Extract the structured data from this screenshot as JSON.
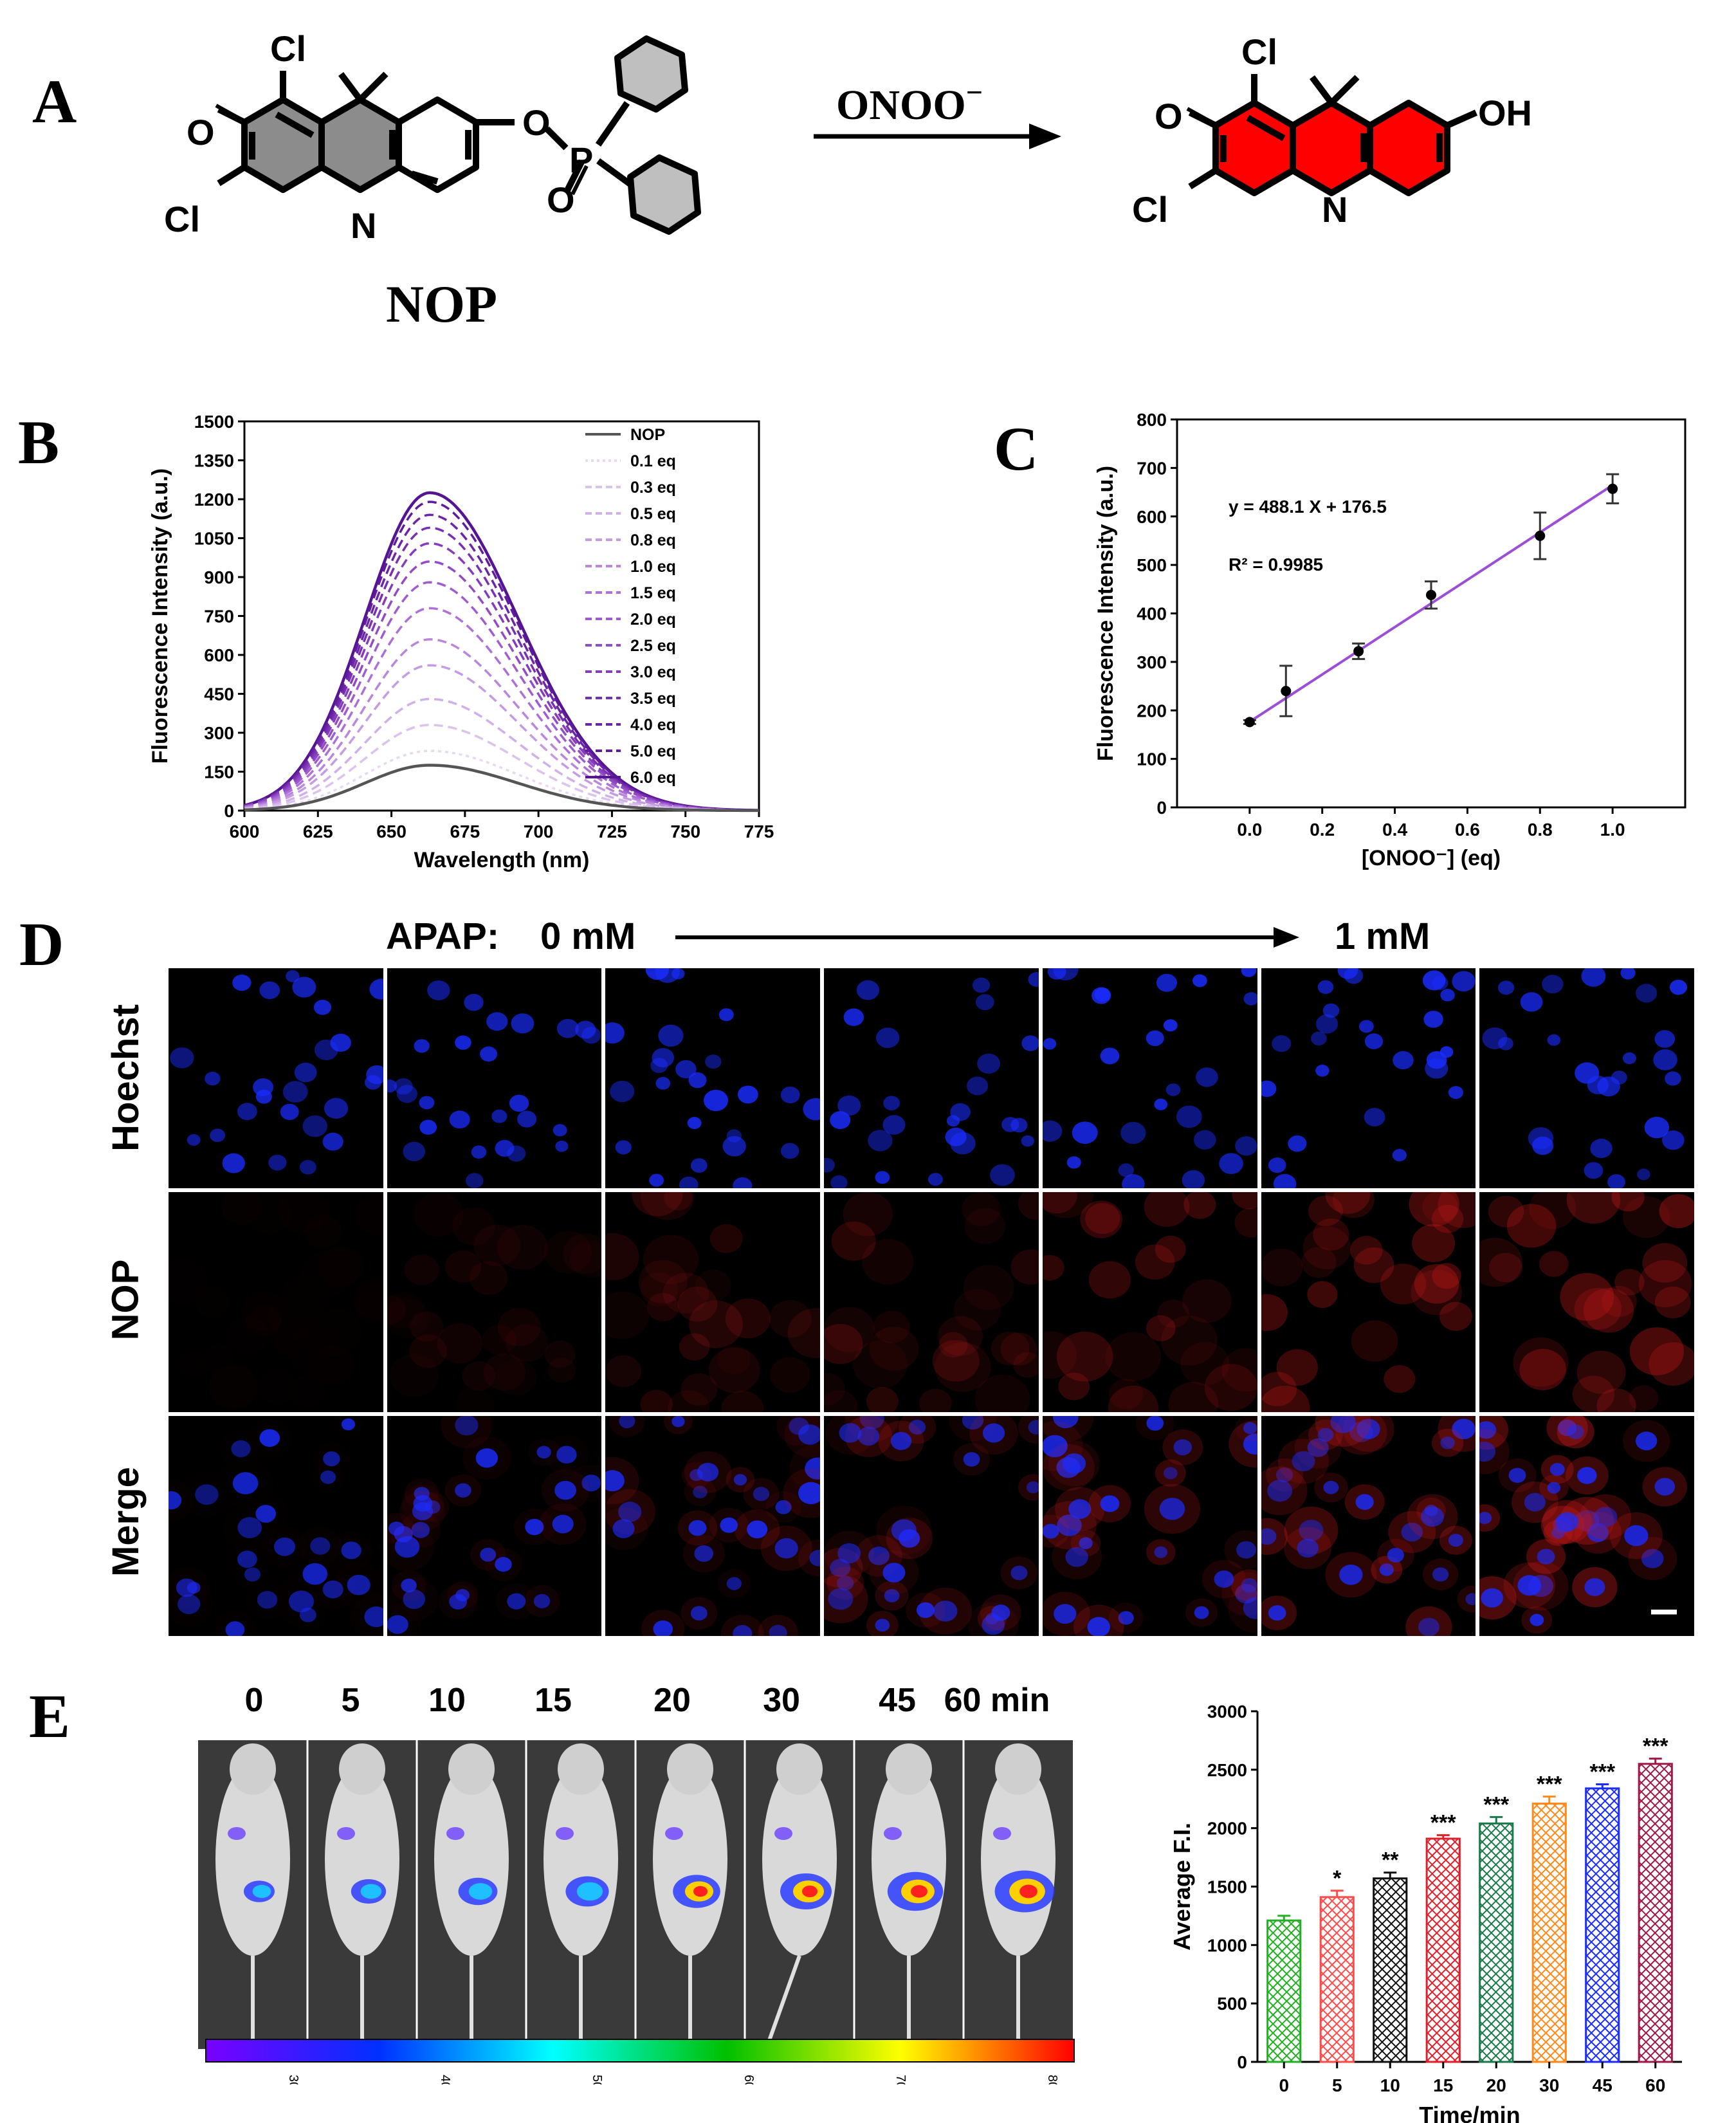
{
  "panels": {
    "A": "A",
    "B": "B",
    "C": "C",
    "D": "D",
    "E": "E"
  },
  "scheme": {
    "probe_name": "NOP",
    "reagent": "ONOO",
    "reagent_charge": "−",
    "atom_cl": "Cl",
    "atom_o": "O",
    "atom_n": "N",
    "atom_p": "P",
    "group_oh": "OH",
    "colors": {
      "probe_fill": "#8c8c8c",
      "product_fill": "#ff0000"
    }
  },
  "panel_d": {
    "apap_label": "APAP:",
    "conc_start": "0 mM",
    "conc_end": "1 mM",
    "rows": [
      "Hoechst",
      "NOP",
      "Merge"
    ],
    "colors": {
      "hoechst": "#1a2cff",
      "nop": "#c01818"
    },
    "nop_intensity": [
      0.05,
      0.2,
      0.38,
      0.45,
      0.55,
      0.72,
      0.85
    ]
  },
  "panel_e_images": {
    "time_labels": [
      "0",
      "5",
      "10",
      "15",
      "20",
      "30",
      "45",
      "60 min"
    ],
    "colorbar_ticks": [
      "3000",
      "4000",
      "5000",
      "6000",
      "7000",
      "8000"
    ]
  },
  "chart_data": [
    {
      "id": "B",
      "type": "line",
      "xlabel": "Wavelength (nm)",
      "ylabel": "Fluorescence Intensity (a.u.)",
      "xlim": [
        600,
        775
      ],
      "ylim": [
        0,
        1500
      ],
      "xticks": [
        "600",
        "625",
        "650",
        "675",
        "700",
        "725",
        "750",
        "775"
      ],
      "yticks": [
        "0",
        "150",
        "300",
        "450",
        "600",
        "750",
        "900",
        "1050",
        "1200",
        "1350",
        "1500"
      ],
      "peak_wavelength": 663,
      "series": [
        {
          "name": "NOP",
          "peak": 175,
          "color": "#555555",
          "style": "solid"
        },
        {
          "name": "0.1 eq",
          "peak": 230,
          "color": "#e8d8f0",
          "style": "dotted"
        },
        {
          "name": "0.3 eq",
          "peak": 330,
          "color": "#dcc2ec",
          "style": "dashed"
        },
        {
          "name": "0.5 eq",
          "peak": 430,
          "color": "#d0b0e8",
          "style": "dashed"
        },
        {
          "name": "0.8 eq",
          "peak": 560,
          "color": "#c59be4",
          "style": "dashed"
        },
        {
          "name": "1.0 eq",
          "peak": 660,
          "color": "#b985de",
          "style": "dashed"
        },
        {
          "name": "1.5 eq",
          "peak": 780,
          "color": "#ad70d8",
          "style": "dashed"
        },
        {
          "name": "2.0 eq",
          "peak": 880,
          "color": "#a05ccf",
          "style": "dashed"
        },
        {
          "name": "2.5 eq",
          "peak": 960,
          "color": "#924bc4",
          "style": "dashed"
        },
        {
          "name": "3.0 eq",
          "peak": 1030,
          "color": "#853cba",
          "style": "dashed"
        },
        {
          "name": "3.5 eq",
          "peak": 1090,
          "color": "#7830b0",
          "style": "dashed"
        },
        {
          "name": "4.0 eq",
          "peak": 1140,
          "color": "#6c25a6",
          "style": "dashed"
        },
        {
          "name": "5.0 eq",
          "peak": 1190,
          "color": "#601c9c",
          "style": "dashed"
        },
        {
          "name": "6.0 eq",
          "peak": 1225,
          "color": "#551492",
          "style": "solid"
        }
      ]
    },
    {
      "id": "C",
      "type": "scatter",
      "xlabel": "[ONOO⁻] (eq)",
      "ylabel": "Fluorescence Intensity (a.u.)",
      "xlim": [
        -0.2,
        1.2
      ],
      "ylim": [
        0,
        800
      ],
      "xticks": [
        "0.0",
        "0.2",
        "0.4",
        "0.6",
        "0.8",
        "1.0"
      ],
      "yticks": [
        "0",
        "100",
        "200",
        "300",
        "400",
        "500",
        "600",
        "700",
        "800"
      ],
      "x": [
        0.0,
        0.1,
        0.3,
        0.5,
        0.8,
        1.0
      ],
      "y": [
        176,
        240,
        322,
        438,
        560,
        657
      ],
      "err": [
        4,
        52,
        16,
        28,
        48,
        30
      ],
      "fit": {
        "slope": 488.1,
        "intercept": 176.5,
        "color": "#9b4fd8"
      },
      "equation": "y = 488.1 X + 176.5",
      "r2": "R² = 0.9985"
    },
    {
      "id": "E",
      "type": "bar",
      "xlabel": "Time/min",
      "ylabel": "Average F.I.",
      "ylim": [
        0,
        3000
      ],
      "yticks": [
        "0",
        "500",
        "1000",
        "1500",
        "2000",
        "2500",
        "3000"
      ],
      "categories": [
        "0",
        "5",
        "10",
        "15",
        "20",
        "30",
        "45",
        "60"
      ],
      "values": [
        1210,
        1410,
        1570,
        1910,
        2040,
        2210,
        2340,
        2550
      ],
      "err": [
        40,
        55,
        50,
        30,
        55,
        60,
        35,
        45
      ],
      "significance": [
        "",
        "*",
        "**",
        "***",
        "***",
        "***",
        "***",
        "***"
      ],
      "colors": [
        "#22b022",
        "#ff4a4a",
        "#111111",
        "#e0202a",
        "#1a7a4a",
        "#ff8a1a",
        "#1a2cff",
        "#a01848"
      ]
    }
  ]
}
